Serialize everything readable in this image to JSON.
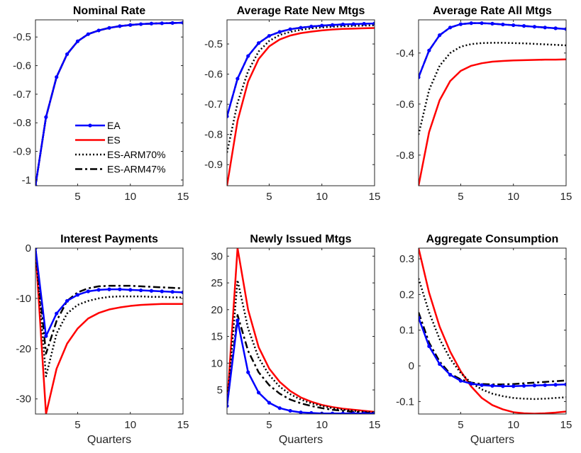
{
  "chart_data": [
    {
      "type": "line",
      "title": "Nominal Rate",
      "xlabel": "",
      "x": [
        1,
        2,
        3,
        4,
        5,
        6,
        7,
        8,
        9,
        10,
        11,
        12,
        13,
        14,
        15
      ],
      "xlim": [
        1,
        15
      ],
      "xticks": [
        5,
        10,
        15
      ],
      "ylim": [
        -1.02,
        -0.44
      ],
      "yticks": [
        -1,
        -0.9,
        -0.8,
        -0.7,
        -0.6,
        -0.5
      ],
      "legend": "inside-center",
      "series": [
        {
          "name": "EA",
          "color": "#0000ff",
          "style": "solid-marker",
          "values": [
            -1.02,
            -0.78,
            -0.64,
            -0.56,
            -0.515,
            -0.49,
            -0.477,
            -0.468,
            -0.462,
            -0.458,
            -0.455,
            -0.453,
            -0.452,
            -0.451,
            -0.45
          ]
        },
        {
          "name": "ES",
          "color": "#ff0000",
          "style": "solid",
          "values": [
            -1.02,
            -0.78,
            -0.64,
            -0.56,
            -0.515,
            -0.49,
            -0.477,
            -0.468,
            -0.462,
            -0.458,
            -0.455,
            -0.453,
            -0.452,
            -0.451,
            -0.45
          ]
        },
        {
          "name": "ES-ARM70%",
          "color": "#000000",
          "style": "dotted",
          "values": [
            -1.02,
            -0.78,
            -0.64,
            -0.56,
            -0.515,
            -0.49,
            -0.477,
            -0.468,
            -0.462,
            -0.458,
            -0.455,
            -0.453,
            -0.452,
            -0.451,
            -0.45
          ]
        },
        {
          "name": "ES-ARM47%",
          "color": "#000000",
          "style": "dashdot",
          "values": [
            -1.02,
            -0.78,
            -0.64,
            -0.56,
            -0.515,
            -0.49,
            -0.477,
            -0.468,
            -0.462,
            -0.458,
            -0.455,
            -0.453,
            -0.452,
            -0.451,
            -0.45
          ]
        }
      ]
    },
    {
      "type": "line",
      "title": "Average Rate New Mtgs",
      "xlabel": "",
      "x": [
        1,
        2,
        3,
        4,
        5,
        6,
        7,
        8,
        9,
        10,
        11,
        12,
        13,
        14,
        15
      ],
      "xlim": [
        1,
        15
      ],
      "xticks": [
        5,
        10,
        15
      ],
      "ylim": [
        -0.97,
        -0.42
      ],
      "yticks": [
        -0.9,
        -0.8,
        -0.7,
        -0.6,
        -0.5
      ],
      "series": [
        {
          "name": "EA",
          "color": "#0000ff",
          "style": "solid-marker",
          "values": [
            -0.74,
            -0.615,
            -0.54,
            -0.497,
            -0.473,
            -0.46,
            -0.451,
            -0.446,
            -0.442,
            -0.439,
            -0.437,
            -0.435,
            -0.434,
            -0.433,
            -0.432
          ]
        },
        {
          "name": "ES",
          "color": "#ff0000",
          "style": "solid",
          "values": [
            -0.97,
            -0.755,
            -0.625,
            -0.55,
            -0.508,
            -0.485,
            -0.472,
            -0.464,
            -0.459,
            -0.455,
            -0.452,
            -0.45,
            -0.449,
            -0.448,
            -0.447
          ]
        },
        {
          "name": "ES-ARM70%",
          "color": "#000000",
          "style": "dotted",
          "values": [
            -0.86,
            -0.695,
            -0.59,
            -0.525,
            -0.49,
            -0.47,
            -0.46,
            -0.453,
            -0.448,
            -0.445,
            -0.443,
            -0.441,
            -0.44,
            -0.439,
            -0.438
          ]
        },
        {
          "name": "ES-ARM47%",
          "color": "#000000",
          "style": "dashdot",
          "values": [
            -0.74,
            -0.615,
            -0.54,
            -0.497,
            -0.473,
            -0.46,
            -0.451,
            -0.446,
            -0.442,
            -0.439,
            -0.437,
            -0.435,
            -0.434,
            -0.433,
            -0.432
          ]
        }
      ]
    },
    {
      "type": "line",
      "title": "Average Rate All Mtgs",
      "xlabel": "",
      "x": [
        1,
        2,
        3,
        4,
        5,
        6,
        7,
        8,
        9,
        10,
        11,
        12,
        13,
        14,
        15
      ],
      "xlim": [
        1,
        15
      ],
      "xticks": [
        5,
        10,
        15
      ],
      "ylim": [
        -0.92,
        -0.27
      ],
      "yticks": [
        -0.8,
        -0.6,
        -0.4
      ],
      "series": [
        {
          "name": "EA",
          "color": "#0000ff",
          "style": "solid-marker",
          "values": [
            -0.495,
            -0.39,
            -0.33,
            -0.3,
            -0.287,
            -0.283,
            -0.283,
            -0.285,
            -0.288,
            -0.291,
            -0.294,
            -0.297,
            -0.3,
            -0.303,
            -0.306
          ]
        },
        {
          "name": "ES",
          "color": "#ff0000",
          "style": "solid",
          "values": [
            -0.92,
            -0.71,
            -0.585,
            -0.51,
            -0.47,
            -0.45,
            -0.44,
            -0.434,
            -0.431,
            -0.429,
            -0.428,
            -0.427,
            -0.426,
            -0.426,
            -0.425
          ]
        },
        {
          "name": "ES-ARM70%",
          "color": "#000000",
          "style": "dotted",
          "values": [
            -0.72,
            -0.545,
            -0.45,
            -0.4,
            -0.375,
            -0.365,
            -0.361,
            -0.36,
            -0.36,
            -0.361,
            -0.362,
            -0.364,
            -0.366,
            -0.368,
            -0.37
          ]
        },
        {
          "name": "ES-ARM47%",
          "color": "#000000",
          "style": "dashdot",
          "values": [
            -0.495,
            -0.39,
            -0.33,
            -0.3,
            -0.287,
            -0.283,
            -0.283,
            -0.285,
            -0.288,
            -0.291,
            -0.294,
            -0.297,
            -0.3,
            -0.303,
            -0.306
          ]
        }
      ]
    },
    {
      "type": "line",
      "title": "Interest Payments",
      "xlabel": "Quarters",
      "x": [
        1,
        2,
        3,
        4,
        5,
        6,
        7,
        8,
        9,
        10,
        11,
        12,
        13,
        14,
        15
      ],
      "xlim": [
        1,
        15
      ],
      "xticks": [
        5,
        10,
        15
      ],
      "ylim": [
        -33,
        0
      ],
      "yticks": [
        -30,
        -20,
        -10,
        0
      ],
      "series": [
        {
          "name": "EA",
          "color": "#0000ff",
          "style": "solid-marker",
          "values": [
            0,
            -17.5,
            -13,
            -10.5,
            -9.3,
            -8.6,
            -8.3,
            -8.2,
            -8.2,
            -8.3,
            -8.4,
            -8.5,
            -8.6,
            -8.7,
            -8.8
          ]
        },
        {
          "name": "ES",
          "color": "#ff0000",
          "style": "solid",
          "values": [
            0,
            -33,
            -24,
            -19,
            -16,
            -14,
            -12.9,
            -12.2,
            -11.8,
            -11.5,
            -11.3,
            -11.2,
            -11.1,
            -11.1,
            -11.1
          ]
        },
        {
          "name": "ES-ARM70%",
          "color": "#000000",
          "style": "dotted",
          "values": [
            0,
            -25.5,
            -17,
            -13,
            -11.3,
            -10.5,
            -10,
            -9.7,
            -9.6,
            -9.6,
            -9.6,
            -9.7,
            -9.7,
            -9.8,
            -9.8
          ]
        },
        {
          "name": "ES-ARM47%",
          "color": "#000000",
          "style": "dashdot",
          "values": [
            0,
            -21,
            -14.5,
            -10.5,
            -8.8,
            -8,
            -7.6,
            -7.5,
            -7.5,
            -7.5,
            -7.6,
            -7.7,
            -7.8,
            -7.9,
            -8
          ]
        }
      ]
    },
    {
      "type": "line",
      "title": "Newly Issued Mtgs",
      "xlabel": "Quarters",
      "x": [
        1,
        2,
        3,
        4,
        5,
        6,
        7,
        8,
        9,
        10,
        11,
        12,
        13,
        14,
        15
      ],
      "xlim": [
        1,
        15
      ],
      "xticks": [
        5,
        10,
        15
      ],
      "ylim": [
        0.5,
        31.5
      ],
      "yticks": [
        5,
        10,
        15,
        20,
        25,
        30
      ],
      "series": [
        {
          "name": "EA",
          "color": "#0000ff",
          "style": "solid-marker",
          "values": [
            2,
            18,
            8.3,
            4.5,
            2.6,
            1.6,
            1.1,
            0.8,
            0.7,
            0.6,
            0.6,
            0.6,
            0.6,
            0.6,
            0.6
          ]
        },
        {
          "name": "ES",
          "color": "#ff0000",
          "style": "solid",
          "values": [
            2,
            31.5,
            20,
            13,
            9,
            6.5,
            4.8,
            3.6,
            2.8,
            2.2,
            1.8,
            1.5,
            1.3,
            1.1,
            0.9
          ]
        },
        {
          "name": "ES-ARM70%",
          "color": "#000000",
          "style": "dotted",
          "values": [
            2,
            25.5,
            16.5,
            11,
            7.8,
            5.6,
            4.2,
            3.2,
            2.5,
            2,
            1.6,
            1.3,
            1.1,
            0.9,
            0.8
          ]
        },
        {
          "name": "ES-ARM47%",
          "color": "#000000",
          "style": "dashdot",
          "values": [
            2,
            19,
            12.3,
            8.3,
            5.9,
            4.3,
            3.2,
            2.5,
            2,
            1.6,
            1.3,
            1.1,
            0.9,
            0.8,
            0.7
          ]
        }
      ]
    },
    {
      "type": "line",
      "title": "Aggregate Consumption",
      "xlabel": "Quarters",
      "x": [
        1,
        2,
        3,
        4,
        5,
        6,
        7,
        8,
        9,
        10,
        11,
        12,
        13,
        14,
        15
      ],
      "xlim": [
        1,
        15
      ],
      "xticks": [
        5,
        10,
        15
      ],
      "ylim": [
        -0.135,
        0.33
      ],
      "yticks": [
        -0.1,
        0,
        0.1,
        0.2,
        0.3
      ],
      "series": [
        {
          "name": "EA",
          "color": "#0000ff",
          "style": "solid-marker",
          "values": [
            0.135,
            0.055,
            0.005,
            -0.025,
            -0.042,
            -0.05,
            -0.054,
            -0.056,
            -0.057,
            -0.057,
            -0.056,
            -0.055,
            -0.054,
            -0.053,
            -0.052
          ]
        },
        {
          "name": "ES",
          "color": "#ff0000",
          "style": "solid",
          "values": [
            0.33,
            0.205,
            0.11,
            0.04,
            -0.015,
            -0.058,
            -0.09,
            -0.11,
            -0.122,
            -0.13,
            -0.133,
            -0.134,
            -0.133,
            -0.131,
            -0.128
          ]
        },
        {
          "name": "ES-ARM70%",
          "color": "#000000",
          "style": "dotted",
          "values": [
            0.245,
            0.15,
            0.075,
            0.02,
            -0.02,
            -0.048,
            -0.066,
            -0.078,
            -0.085,
            -0.09,
            -0.092,
            -0.093,
            -0.092,
            -0.09,
            -0.088
          ]
        },
        {
          "name": "ES-ARM47%",
          "color": "#000000",
          "style": "dashdot",
          "values": [
            0.15,
            0.065,
            0.012,
            -0.022,
            -0.038,
            -0.047,
            -0.051,
            -0.052,
            -0.052,
            -0.051,
            -0.049,
            -0.047,
            -0.045,
            -0.043,
            -0.041
          ]
        }
      ]
    }
  ]
}
